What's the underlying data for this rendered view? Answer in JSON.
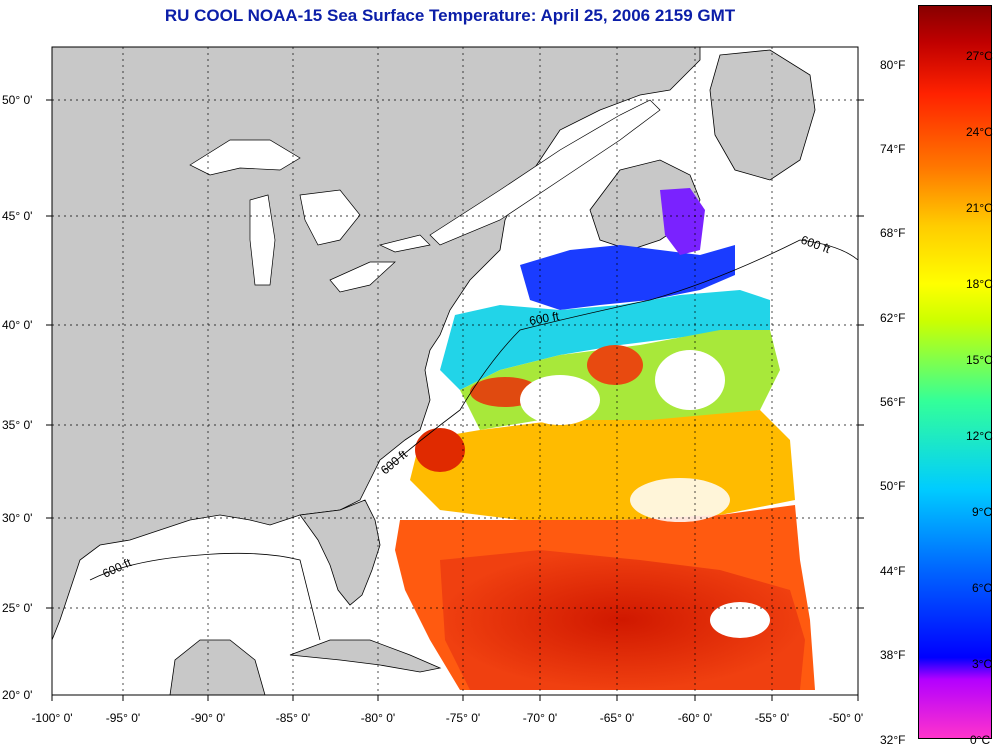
{
  "title": "RU COOL  NOAA-15  Sea Surface Temperature:  April 25, 2006 2159 GMT",
  "map": {
    "lat_labels": [
      "50° 0'",
      "45° 0'",
      "40° 0'",
      "35° 0'",
      "30° 0'",
      "25° 0'",
      "20° 0'"
    ],
    "lon_labels": [
      "-100° 0'",
      "-95° 0'",
      "-90° 0'",
      "-85° 0'",
      "-80° 0'",
      "-75° 0'",
      "-70° 0'",
      "-65° 0'",
      "-60° 0'",
      "-55° 0'",
      "-50° 0'"
    ],
    "isobath_label": "600 ft",
    "land_color": "#c8c8c8",
    "ocean_color": "#ffffff"
  },
  "colorbar": {
    "fahrenheit_labels": [
      "80°F",
      "74°F",
      "68°F",
      "62°F",
      "56°F",
      "50°F",
      "44°F",
      "38°F",
      "32°F"
    ],
    "celsius_labels": [
      "27°C",
      "24°C",
      "21°C",
      "18°C",
      "15°C",
      "12°C",
      "9°C",
      "6°C",
      "3°C",
      "0°C"
    ]
  }
}
